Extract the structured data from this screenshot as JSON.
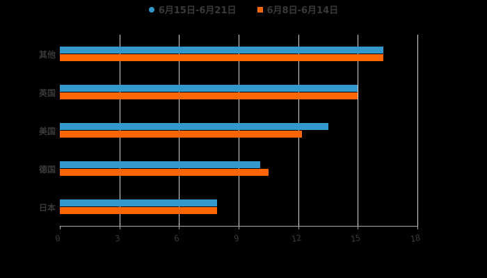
{
  "legend": {
    "series1": {
      "label": "6月15日-6月21日",
      "color": "#3399cc"
    },
    "series2": {
      "label": "6月8日-6月14日",
      "color": "#ff6600"
    }
  },
  "chart_data": {
    "type": "bar",
    "orientation": "horizontal",
    "title": "",
    "xlabel": "",
    "ylabel": "",
    "categories": [
      "其他",
      "英国",
      "美国",
      "德国",
      "日本"
    ],
    "series": [
      {
        "name": "6月15日-6月21日",
        "color": "#3399cc",
        "values": [
          16.3,
          15.0,
          13.5,
          10.1,
          7.9
        ]
      },
      {
        "name": "6月8日-6月14日",
        "color": "#ff6600",
        "values": [
          16.3,
          15.0,
          12.2,
          10.5,
          7.9
        ]
      }
    ],
    "xlim": [
      0,
      18
    ],
    "xticks": [
      "0",
      "3",
      "6",
      "9",
      "12",
      "15",
      "18"
    ],
    "grid": true,
    "legend_position": "top"
  }
}
